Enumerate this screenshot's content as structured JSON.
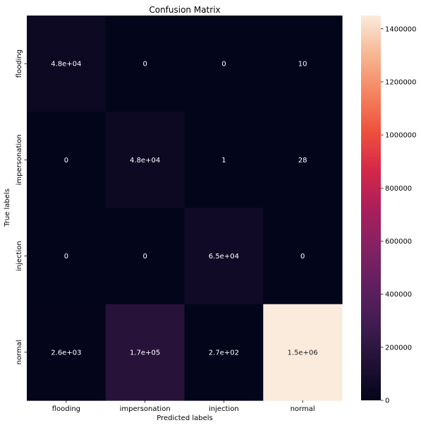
{
  "chart_data": {
    "type": "heatmap",
    "title": "Confusion Matrix",
    "xlabel": "Predicted labels",
    "ylabel": "True labels",
    "x_categories": [
      "flooding",
      "impersonation",
      "injection",
      "normal"
    ],
    "y_categories": [
      "flooding",
      "impersonation",
      "injection",
      "normal"
    ],
    "values": [
      [
        48000,
        0,
        0,
        10
      ],
      [
        0,
        48000,
        1,
        28
      ],
      [
        0,
        0,
        65000,
        0
      ],
      [
        2600,
        170000,
        270,
        1500000
      ]
    ],
    "annotations": [
      [
        "4.8e+04",
        "0",
        "0",
        "10"
      ],
      [
        "0",
        "4.8e+04",
        "1",
        "28"
      ],
      [
        "0",
        "0",
        "6.5e+04",
        "0"
      ],
      [
        "2.6e+03",
        "1.7e+05",
        "2.7e+02",
        "1.5e+06"
      ]
    ],
    "colorbar": {
      "min": 0,
      "max": 1450000,
      "ticks": [
        0,
        200000,
        400000,
        600000,
        800000,
        1000000,
        1200000,
        1400000
      ],
      "colormap": "rocket"
    }
  }
}
